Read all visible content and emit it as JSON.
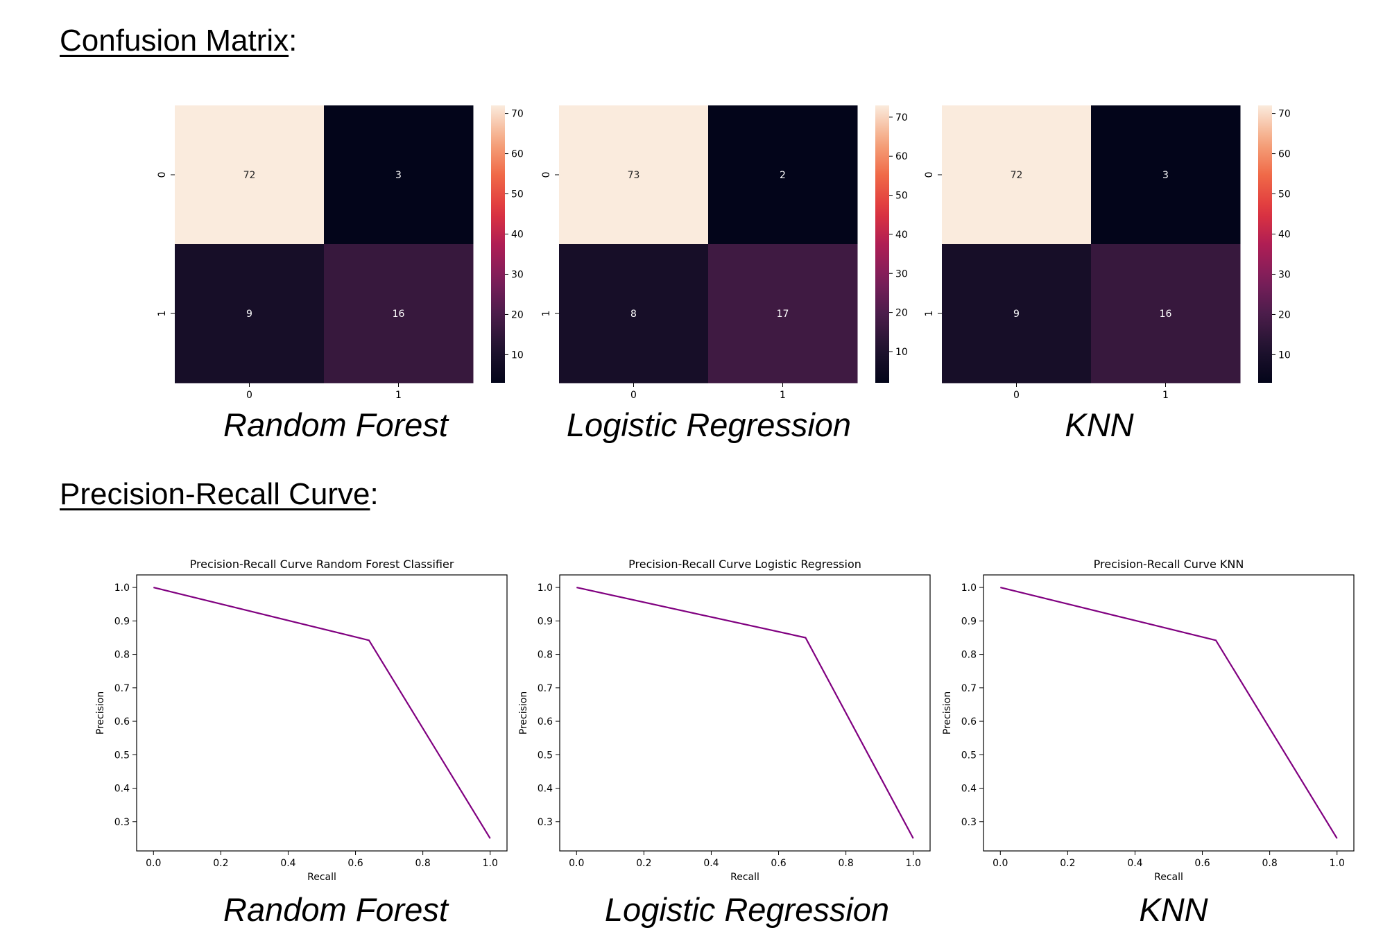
{
  "sections": {
    "confusion_title": "Confusion Matrix",
    "confusion_suffix": ":",
    "pr_title": "Precision-Recall Curve",
    "pr_suffix": ":"
  },
  "captions": {
    "cm": [
      "Random Forest",
      "Logistic Regression",
      "KNN"
    ],
    "pr": [
      "Random Forest",
      "Logistic Regression",
      "KNN"
    ]
  },
  "chart_data": [
    {
      "type": "heatmap",
      "caption": "Random Forest",
      "row_labels": [
        "0",
        "1"
      ],
      "col_labels": [
        "0",
        "1"
      ],
      "values": [
        [
          72,
          3
        ],
        [
          9,
          16
        ]
      ],
      "colorbar_ticks": [
        10,
        20,
        30,
        40,
        50,
        60,
        70
      ],
      "colormap": "rocket"
    },
    {
      "type": "heatmap",
      "caption": "Logistic Regression",
      "row_labels": [
        "0",
        "1"
      ],
      "col_labels": [
        "0",
        "1"
      ],
      "values": [
        [
          73,
          2
        ],
        [
          8,
          17
        ]
      ],
      "colorbar_ticks": [
        10,
        20,
        30,
        40,
        50,
        60,
        70
      ],
      "colormap": "rocket"
    },
    {
      "type": "heatmap",
      "caption": "KNN",
      "row_labels": [
        "0",
        "1"
      ],
      "col_labels": [
        "0",
        "1"
      ],
      "values": [
        [
          72,
          3
        ],
        [
          9,
          16
        ]
      ],
      "colorbar_ticks": [
        10,
        20,
        30,
        40,
        50,
        60,
        70
      ],
      "colormap": "rocket"
    },
    {
      "type": "line",
      "title": "Precision-Recall Curve Random Forest Classifier",
      "xlabel": "Recall",
      "ylabel": "Precision",
      "x": [
        0.0,
        0.64,
        1.0
      ],
      "y": [
        1.0,
        0.842,
        0.25
      ],
      "xticks": [
        0.0,
        0.2,
        0.4,
        0.6,
        0.8,
        1.0
      ],
      "yticks": [
        0.3,
        0.4,
        0.5,
        0.6,
        0.7,
        0.8,
        0.9,
        1.0
      ],
      "xlim": [
        -0.05,
        1.05
      ],
      "ylim": [
        0.2125,
        1.0375
      ],
      "color": "#800080",
      "caption": "Random Forest"
    },
    {
      "type": "line",
      "title": "Precision-Recall Curve Logistic Regression",
      "xlabel": "Recall",
      "ylabel": "Precision",
      "x": [
        0.0,
        0.68,
        1.0
      ],
      "y": [
        1.0,
        0.85,
        0.25
      ],
      "xticks": [
        0.0,
        0.2,
        0.4,
        0.6,
        0.8,
        1.0
      ],
      "yticks": [
        0.3,
        0.4,
        0.5,
        0.6,
        0.7,
        0.8,
        0.9,
        1.0
      ],
      "xlim": [
        -0.05,
        1.05
      ],
      "ylim": [
        0.2125,
        1.0375
      ],
      "color": "#800080",
      "caption": "Logistic Regression"
    },
    {
      "type": "line",
      "title": "Precision-Recall Curve KNN",
      "xlabel": "Recall",
      "ylabel": "Precision",
      "x": [
        0.0,
        0.64,
        1.0
      ],
      "y": [
        1.0,
        0.842,
        0.25
      ],
      "xticks": [
        0.0,
        0.2,
        0.4,
        0.6,
        0.8,
        1.0
      ],
      "yticks": [
        0.3,
        0.4,
        0.5,
        0.6,
        0.7,
        0.8,
        0.9,
        1.0
      ],
      "xlim": [
        -0.05,
        1.05
      ],
      "ylim": [
        0.2125,
        1.0375
      ],
      "color": "#800080",
      "caption": "KNN"
    }
  ]
}
